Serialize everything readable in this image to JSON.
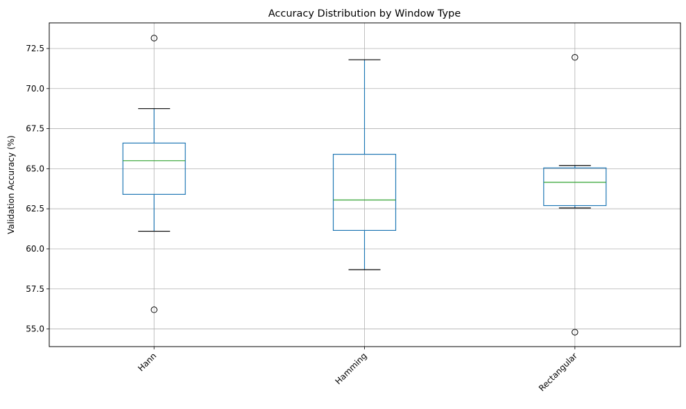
{
  "chart_data": {
    "type": "boxplot",
    "title": "Accuracy Distribution by Window Type",
    "xlabel": "",
    "ylabel": "Validation Accuracy (%)",
    "ylim": [
      53.9,
      74.1
    ],
    "yticks": [
      55.0,
      57.5,
      60.0,
      62.5,
      65.0,
      67.5,
      70.0,
      72.5
    ],
    "ytick_labels": [
      "55.0",
      "57.5",
      "60.0",
      "62.5",
      "65.0",
      "67.5",
      "70.0",
      "72.5"
    ],
    "grid": true,
    "categories": [
      "Hann",
      "Hamming",
      "Rectangular"
    ],
    "boxes": [
      {
        "category": "Hann",
        "whisker_low": 61.1,
        "q1": 63.4,
        "median": 65.5,
        "q3": 66.6,
        "whisker_high": 68.75,
        "outliers": [
          73.15,
          56.2
        ]
      },
      {
        "category": "Hamming",
        "whisker_low": 58.7,
        "q1": 61.15,
        "median": 63.05,
        "q3": 65.9,
        "whisker_high": 71.8,
        "outliers": []
      },
      {
        "category": "Rectangular",
        "whisker_low": 62.55,
        "q1": 62.7,
        "median": 64.15,
        "q3": 65.05,
        "whisker_high": 65.2,
        "outliers": [
          71.95,
          54.8
        ]
      }
    ],
    "colors": {
      "box": "#1f77b4",
      "median": "#2ca02c",
      "whisker_cap": "#000000",
      "grid": "#b0b0b0"
    }
  }
}
